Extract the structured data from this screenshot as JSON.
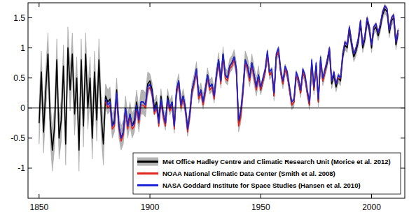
{
  "chart_data": {
    "type": "line",
    "x": [
      1850,
      1851,
      1852,
      1853,
      1854,
      1855,
      1856,
      1857,
      1858,
      1859,
      1860,
      1861,
      1862,
      1863,
      1864,
      1865,
      1866,
      1867,
      1868,
      1869,
      1870,
      1871,
      1872,
      1873,
      1874,
      1875,
      1876,
      1877,
      1878,
      1879,
      1880,
      1881,
      1882,
      1883,
      1884,
      1885,
      1886,
      1887,
      1888,
      1889,
      1890,
      1891,
      1892,
      1893,
      1894,
      1895,
      1896,
      1897,
      1898,
      1899,
      1900,
      1901,
      1902,
      1903,
      1904,
      1905,
      1906,
      1907,
      1908,
      1909,
      1910,
      1911,
      1912,
      1913,
      1914,
      1915,
      1916,
      1917,
      1918,
      1919,
      1920,
      1921,
      1922,
      1923,
      1924,
      1925,
      1926,
      1927,
      1928,
      1929,
      1930,
      1931,
      1932,
      1933,
      1934,
      1935,
      1936,
      1937,
      1938,
      1939,
      1940,
      1941,
      1942,
      1943,
      1944,
      1945,
      1946,
      1947,
      1948,
      1949,
      1950,
      1951,
      1952,
      1953,
      1954,
      1955,
      1956,
      1957,
      1958,
      1959,
      1960,
      1961,
      1962,
      1963,
      1964,
      1965,
      1966,
      1967,
      1968,
      1969,
      1970,
      1971,
      1972,
      1973,
      1974,
      1975,
      1976,
      1977,
      1978,
      1979,
      1980,
      1981,
      1982,
      1983,
      1984,
      1985,
      1986,
      1987,
      1988,
      1989,
      1990,
      1991,
      1992,
      1993,
      1994,
      1995,
      1996,
      1997,
      1998,
      1999,
      2000,
      2001,
      2002,
      2003,
      2004,
      2005,
      2006,
      2007,
      2008,
      2009,
      2010,
      2011,
      2012
    ],
    "series": [
      {
        "name": "Met Office Hadley Centre and Climatic Research Unit (Morice et al. 2012)",
        "color": "#000000",
        "values": [
          -0.25,
          0.6,
          -0.4,
          0.3,
          0.9,
          -0.2,
          -0.7,
          -0.3,
          0.8,
          -0.5,
          -0.2,
          0.7,
          -0.6,
          1.0,
          0.3,
          0.9,
          -0.1,
          0.5,
          -0.7,
          0.8,
          -0.3,
          0.9,
          0.0,
          0.5,
          -0.5,
          0.6,
          -0.2,
          0.8,
          -0.1,
          -0.6,
          0.2,
          0.1,
          0.15,
          -0.3,
          -0.2,
          0.3,
          -0.3,
          -0.5,
          -0.4,
          0.0,
          -0.3,
          -0.1,
          -0.3,
          -0.2,
          0.1,
          -0.2,
          0.1,
          0.1,
          0.05,
          0.4,
          0.45,
          0.3,
          0.0,
          0.1,
          -0.2,
          0.2,
          -0.1,
          -0.25,
          0.2,
          0.0,
          0.1,
          -0.3,
          0.3,
          0.45,
          0.05,
          0.2,
          0.0,
          -0.35,
          -0.1,
          0.3,
          0.45,
          0.65,
          0.2,
          0.3,
          0.1,
          0.3,
          0.55,
          0.35,
          0.4,
          0.2,
          0.55,
          0.8,
          0.45,
          0.9,
          0.55,
          0.5,
          0.7,
          0.75,
          0.85,
          0.65,
          -0.25,
          -0.1,
          0.3,
          0.8,
          0.7,
          0.5,
          0.75,
          0.55,
          0.35,
          0.55,
          0.3,
          0.45,
          0.6,
          0.9,
          0.55,
          0.6,
          0.2,
          0.85,
          0.95,
          0.6,
          0.4,
          0.65,
          0.55,
          0.3,
          0.05,
          0.1,
          0.55,
          0.45,
          0.25,
          0.6,
          0.5,
          0.25,
          0.05,
          0.75,
          0.3,
          0.7,
          0.1,
          0.8,
          0.45,
          0.6,
          0.75,
          0.95,
          0.4,
          0.55,
          0.35,
          0.5,
          0.45,
          0.85,
          1.05,
          1.0,
          1.3,
          1.05,
          0.85,
          0.95,
          1.1,
          1.4,
          1.0,
          1.15,
          1.45,
          1.3,
          1.0,
          1.3,
          1.35,
          1.2,
          1.35,
          1.55,
          1.65,
          1.6,
          1.25,
          1.45,
          1.5,
          1.05,
          1.25
        ],
        "error": [
          0.35,
          0.35,
          0.35,
          0.35,
          0.35,
          0.35,
          0.35,
          0.35,
          0.35,
          0.35,
          0.35,
          0.35,
          0.35,
          0.35,
          0.35,
          0.35,
          0.35,
          0.35,
          0.35,
          0.35,
          0.35,
          0.35,
          0.35,
          0.35,
          0.35,
          0.35,
          0.35,
          0.35,
          0.35,
          0.35,
          0.2,
          0.2,
          0.2,
          0.2,
          0.2,
          0.2,
          0.2,
          0.2,
          0.2,
          0.2,
          0.2,
          0.2,
          0.2,
          0.2,
          0.2,
          0.2,
          0.2,
          0.2,
          0.2,
          0.2,
          0.12,
          0.12,
          0.12,
          0.12,
          0.12,
          0.12,
          0.12,
          0.12,
          0.12,
          0.12,
          0.12,
          0.12,
          0.12,
          0.12,
          0.12,
          0.12,
          0.12,
          0.12,
          0.12,
          0.12,
          0.12,
          0.12,
          0.12,
          0.12,
          0.12,
          0.12,
          0.12,
          0.12,
          0.12,
          0.12,
          0.12,
          0.12,
          0.12,
          0.12,
          0.12,
          0.12,
          0.12,
          0.12,
          0.12,
          0.12,
          0.15,
          0.15,
          0.15,
          0.15,
          0.15,
          0.15,
          0.15,
          0.15,
          0.15,
          0.15,
          0.08,
          0.08,
          0.08,
          0.08,
          0.08,
          0.08,
          0.08,
          0.08,
          0.08,
          0.08,
          0.08,
          0.08,
          0.08,
          0.08,
          0.08,
          0.08,
          0.08,
          0.08,
          0.08,
          0.08,
          0.08,
          0.08,
          0.08,
          0.08,
          0.08,
          0.08,
          0.08,
          0.08,
          0.08,
          0.08,
          0.08,
          0.08,
          0.08,
          0.08,
          0.08,
          0.08,
          0.08,
          0.08,
          0.08,
          0.08,
          0.08,
          0.08,
          0.08,
          0.08,
          0.08,
          0.08,
          0.08,
          0.08,
          0.08,
          0.08,
          0.08,
          0.08,
          0.08,
          0.08,
          0.08,
          0.08,
          0.08,
          0.08,
          0.08,
          0.08,
          0.08,
          0.08,
          0.08
        ]
      },
      {
        "name": "NOAA National Climatic Data Center (Smith et al. 2008)",
        "color": "#e3241c",
        "values": [
          null,
          null,
          null,
          null,
          null,
          null,
          null,
          null,
          null,
          null,
          null,
          null,
          null,
          null,
          null,
          null,
          null,
          null,
          null,
          null,
          null,
          null,
          null,
          null,
          null,
          null,
          null,
          null,
          null,
          null,
          0.1,
          0.0,
          0.05,
          -0.35,
          -0.3,
          0.2,
          -0.35,
          -0.55,
          -0.45,
          -0.05,
          -0.35,
          -0.15,
          -0.35,
          -0.3,
          0.0,
          -0.25,
          0.05,
          0.05,
          0.0,
          0.3,
          0.35,
          0.2,
          -0.1,
          0.0,
          -0.3,
          0.1,
          -0.15,
          -0.3,
          0.1,
          -0.05,
          0.05,
          -0.35,
          0.25,
          0.4,
          0.0,
          0.15,
          -0.05,
          -0.4,
          -0.15,
          0.25,
          0.4,
          0.6,
          0.15,
          0.25,
          0.05,
          0.25,
          0.5,
          0.3,
          0.35,
          0.15,
          0.5,
          0.75,
          0.4,
          0.85,
          0.5,
          0.45,
          0.65,
          0.7,
          0.8,
          0.6,
          -0.3,
          -0.15,
          0.25,
          0.75,
          0.65,
          0.45,
          0.7,
          0.5,
          0.3,
          0.5,
          0.3,
          0.45,
          0.6,
          0.9,
          0.55,
          0.6,
          0.2,
          0.85,
          0.95,
          0.6,
          0.4,
          0.65,
          0.55,
          0.3,
          0.05,
          0.1,
          0.55,
          0.45,
          0.25,
          0.6,
          0.5,
          0.25,
          0.05,
          0.75,
          0.3,
          0.7,
          0.1,
          0.8,
          0.45,
          0.6,
          0.8,
          1.0,
          0.45,
          0.6,
          0.4,
          0.5,
          0.5,
          0.9,
          1.1,
          1.05,
          1.35,
          1.1,
          0.9,
          1.0,
          1.15,
          1.45,
          1.05,
          1.2,
          1.5,
          1.35,
          1.05,
          1.35,
          1.4,
          1.25,
          1.4,
          1.6,
          1.7,
          1.65,
          1.3,
          1.5,
          1.55,
          1.1,
          1.3
        ]
      },
      {
        "name": "NASA Goddard Institute for Space Studies (Hansen et al. 2010)",
        "color": "#1c22d8",
        "values": [
          null,
          null,
          null,
          null,
          null,
          null,
          null,
          null,
          null,
          null,
          null,
          null,
          null,
          null,
          null,
          null,
          null,
          null,
          null,
          null,
          null,
          null,
          null,
          null,
          null,
          null,
          null,
          null,
          null,
          null,
          0.15,
          0.05,
          0.1,
          -0.3,
          -0.25,
          0.25,
          -0.3,
          -0.5,
          -0.4,
          0.0,
          -0.3,
          -0.1,
          -0.3,
          -0.25,
          0.05,
          -0.2,
          0.1,
          0.1,
          0.05,
          0.35,
          0.4,
          0.25,
          -0.05,
          0.05,
          -0.25,
          0.15,
          -0.1,
          -0.25,
          0.15,
          0.0,
          0.1,
          -0.3,
          0.3,
          0.45,
          0.05,
          0.2,
          0.0,
          -0.35,
          -0.1,
          0.3,
          0.45,
          0.65,
          0.2,
          0.3,
          0.1,
          0.3,
          0.55,
          0.35,
          0.4,
          0.2,
          0.55,
          0.8,
          0.45,
          0.9,
          0.55,
          0.5,
          0.7,
          0.75,
          0.85,
          0.65,
          -0.2,
          -0.05,
          0.3,
          0.8,
          0.7,
          0.5,
          0.75,
          0.55,
          0.35,
          0.55,
          0.35,
          0.5,
          0.65,
          0.95,
          0.6,
          0.65,
          0.25,
          0.9,
          1.0,
          0.65,
          0.45,
          0.7,
          0.6,
          0.35,
          0.1,
          0.15,
          0.6,
          0.5,
          0.3,
          0.65,
          0.55,
          0.3,
          0.1,
          0.8,
          0.35,
          0.75,
          0.15,
          0.85,
          0.5,
          0.65,
          0.8,
          1.0,
          0.45,
          0.6,
          0.4,
          0.55,
          0.5,
          0.9,
          1.1,
          1.05,
          1.35,
          1.1,
          0.9,
          1.0,
          1.15,
          1.45,
          1.05,
          1.2,
          1.5,
          1.35,
          1.05,
          1.35,
          1.4,
          1.25,
          1.4,
          1.6,
          1.7,
          1.65,
          1.3,
          1.5,
          1.55,
          1.1,
          1.3
        ]
      }
    ],
    "xlim": [
      1845,
      2015
    ],
    "xticks": [
      1850,
      1900,
      1950,
      2000
    ],
    "ylim": [
      -1.5,
      1.75
    ],
    "yticks": [
      -1,
      -0.5,
      0,
      0.5,
      1,
      1.5
    ],
    "grid": false,
    "legend": "lower right"
  }
}
